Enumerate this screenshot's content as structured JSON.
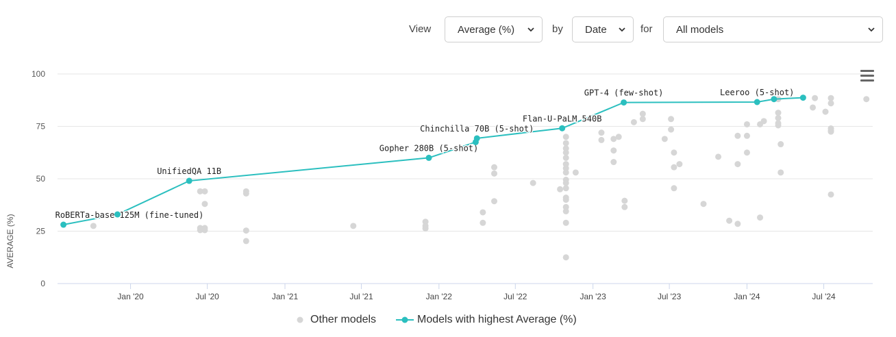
{
  "controls": {
    "view_label": "View",
    "view_value": "Average (%)",
    "by_label": "by",
    "by_value": "Date",
    "for_label": "for",
    "for_value": "All models"
  },
  "icons": {
    "chevron": "chevron-down-icon",
    "menu": "hamburger-menu-icon"
  },
  "colors": {
    "best": "#2bbfbf",
    "other": "#d6d6d6",
    "grid": "#e6e6e6",
    "axis": "#ccd6eb"
  },
  "chart_data": {
    "type": "scatter",
    "title": "",
    "xlabel": "",
    "ylabel": "AVERAGE (%)",
    "ylim": [
      0,
      100
    ],
    "yticks": [
      0,
      25,
      50,
      75,
      100
    ],
    "xlim": [
      "2019-07-12",
      "2024-10-25"
    ],
    "xticks": [
      {
        "label": "Jan '20",
        "date": "2020-01-01"
      },
      {
        "label": "Jul '20",
        "date": "2020-07-01"
      },
      {
        "label": "Jan '21",
        "date": "2021-01-01"
      },
      {
        "label": "Jul '21",
        "date": "2021-07-01"
      },
      {
        "label": "Jan '22",
        "date": "2022-01-01"
      },
      {
        "label": "Jul '22",
        "date": "2022-07-01"
      },
      {
        "label": "Jan '23",
        "date": "2023-01-01"
      },
      {
        "label": "Jul '23",
        "date": "2023-07-01"
      },
      {
        "label": "Jan '24",
        "date": "2024-01-01"
      },
      {
        "label": "Jul '24",
        "date": "2024-07-01"
      }
    ],
    "legend_position": "bottom",
    "series": [
      {
        "name": "Other models",
        "points": [
          {
            "date": "2019-10-05",
            "value": 27.5
          },
          {
            "date": "2020-06-14",
            "value": 44
          },
          {
            "date": "2020-06-25",
            "value": 44
          },
          {
            "date": "2020-06-25",
            "value": 38
          },
          {
            "date": "2020-06-14",
            "value": 26.5
          },
          {
            "date": "2020-06-14",
            "value": 25.5
          },
          {
            "date": "2020-06-25",
            "value": 26.5
          },
          {
            "date": "2020-06-25",
            "value": 25.5
          },
          {
            "date": "2020-10-01",
            "value": 44
          },
          {
            "date": "2020-10-01",
            "value": 43
          },
          {
            "date": "2020-10-01",
            "value": 25.3
          },
          {
            "date": "2020-10-01",
            "value": 20.3
          },
          {
            "date": "2021-06-12",
            "value": 27.5
          },
          {
            "date": "2021-11-30",
            "value": 29.5
          },
          {
            "date": "2021-11-30",
            "value": 27.5
          },
          {
            "date": "2021-11-30",
            "value": 26.3
          },
          {
            "date": "2022-04-15",
            "value": 34
          },
          {
            "date": "2022-04-15",
            "value": 29
          },
          {
            "date": "2022-05-12",
            "value": 55.5
          },
          {
            "date": "2022-05-12",
            "value": 52.5
          },
          {
            "date": "2022-05-12",
            "value": 39.3
          },
          {
            "date": "2022-08-12",
            "value": 48
          },
          {
            "date": "2022-10-15",
            "value": 45
          },
          {
            "date": "2022-10-29",
            "value": 70
          },
          {
            "date": "2022-10-29",
            "value": 67
          },
          {
            "date": "2022-10-29",
            "value": 64.5
          },
          {
            "date": "2022-10-29",
            "value": 62.5
          },
          {
            "date": "2022-10-29",
            "value": 60
          },
          {
            "date": "2022-10-29",
            "value": 57
          },
          {
            "date": "2022-10-29",
            "value": 55
          },
          {
            "date": "2022-10-29",
            "value": 53
          },
          {
            "date": "2022-10-29",
            "value": 49.5
          },
          {
            "date": "2022-10-29",
            "value": 48
          },
          {
            "date": "2022-10-29",
            "value": 45.5
          },
          {
            "date": "2022-10-29",
            "value": 41
          },
          {
            "date": "2022-10-29",
            "value": 40
          },
          {
            "date": "2022-10-29",
            "value": 36.5
          },
          {
            "date": "2022-10-29",
            "value": 34.5
          },
          {
            "date": "2022-10-29",
            "value": 29
          },
          {
            "date": "2022-10-29",
            "value": 12.5
          },
          {
            "date": "2022-11-21",
            "value": 53
          },
          {
            "date": "2023-01-21",
            "value": 72
          },
          {
            "date": "2023-01-21",
            "value": 68.5
          },
          {
            "date": "2023-02-19",
            "value": 69
          },
          {
            "date": "2023-02-19",
            "value": 63.5
          },
          {
            "date": "2023-02-19",
            "value": 58
          },
          {
            "date": "2023-03-03",
            "value": 70
          },
          {
            "date": "2023-03-17",
            "value": 39.5
          },
          {
            "date": "2023-03-17",
            "value": 36.5
          },
          {
            "date": "2023-04-08",
            "value": 77
          },
          {
            "date": "2023-04-29",
            "value": 81
          },
          {
            "date": "2023-04-29",
            "value": 78.5
          },
          {
            "date": "2023-06-20",
            "value": 69
          },
          {
            "date": "2023-07-05",
            "value": 78.5
          },
          {
            "date": "2023-07-05",
            "value": 73.5
          },
          {
            "date": "2023-07-12",
            "value": 62.5
          },
          {
            "date": "2023-07-12",
            "value": 55.5
          },
          {
            "date": "2023-07-12",
            "value": 45.5
          },
          {
            "date": "2023-07-25",
            "value": 57
          },
          {
            "date": "2023-09-20",
            "value": 38
          },
          {
            "date": "2023-10-25",
            "value": 60.5
          },
          {
            "date": "2023-11-20",
            "value": 30
          },
          {
            "date": "2023-12-10",
            "value": 57
          },
          {
            "date": "2023-12-10",
            "value": 70.5
          },
          {
            "date": "2023-12-10",
            "value": 28.5
          },
          {
            "date": "2024-01-01",
            "value": 76
          },
          {
            "date": "2024-01-01",
            "value": 70.5
          },
          {
            "date": "2024-01-01",
            "value": 62.5
          },
          {
            "date": "2024-02-01",
            "value": 76
          },
          {
            "date": "2024-02-01",
            "value": 31.5
          },
          {
            "date": "2024-02-10",
            "value": 77.5
          },
          {
            "date": "2024-03-15",
            "value": 88
          },
          {
            "date": "2024-03-15",
            "value": 81.5
          },
          {
            "date": "2024-03-15",
            "value": 79
          },
          {
            "date": "2024-03-15",
            "value": 76.5
          },
          {
            "date": "2024-03-15",
            "value": 75.5
          },
          {
            "date": "2024-03-21",
            "value": 66.5
          },
          {
            "date": "2024-03-21",
            "value": 53
          },
          {
            "date": "2024-06-10",
            "value": 88.5
          },
          {
            "date": "2024-06-05",
            "value": 84
          },
          {
            "date": "2024-07-05",
            "value": 82
          },
          {
            "date": "2024-07-18",
            "value": 88.5
          },
          {
            "date": "2024-07-18",
            "value": 86
          },
          {
            "date": "2024-07-18",
            "value": 74
          },
          {
            "date": "2024-07-18",
            "value": 73
          },
          {
            "date": "2024-07-18",
            "value": 72.5
          },
          {
            "date": "2024-07-18",
            "value": 42.5
          },
          {
            "date": "2024-10-10",
            "value": 88
          }
        ]
      },
      {
        "name": "Models with highest Average (%)",
        "points": [
          {
            "date": "2019-07-26",
            "value": 28.1,
            "label": "RoBERTa-base 125M (fine-tuned)"
          },
          {
            "date": "2019-12-01",
            "value": 33
          },
          {
            "date": "2020-05-19",
            "value": 49,
            "label": "UnifiedQA 11B"
          },
          {
            "date": "2021-12-08",
            "value": 60,
            "label": "Gopher 280B (5-shot)"
          },
          {
            "date": "2022-03-29",
            "value": 67.5
          },
          {
            "date": "2022-04-01",
            "value": 69.3,
            "label": "Chinchilla 70B (5-shot)"
          },
          {
            "date": "2022-10-20",
            "value": 74.1,
            "label": "Flan-U-PaLM 540B"
          },
          {
            "date": "2023-03-15",
            "value": 86.4,
            "label": "GPT-4 (few-shot)"
          },
          {
            "date": "2024-01-25",
            "value": 86.6,
            "label": "Leeroo (5-shot)"
          },
          {
            "date": "2024-03-05",
            "value": 88
          },
          {
            "date": "2024-05-13",
            "value": 88.7
          }
        ]
      }
    ]
  }
}
